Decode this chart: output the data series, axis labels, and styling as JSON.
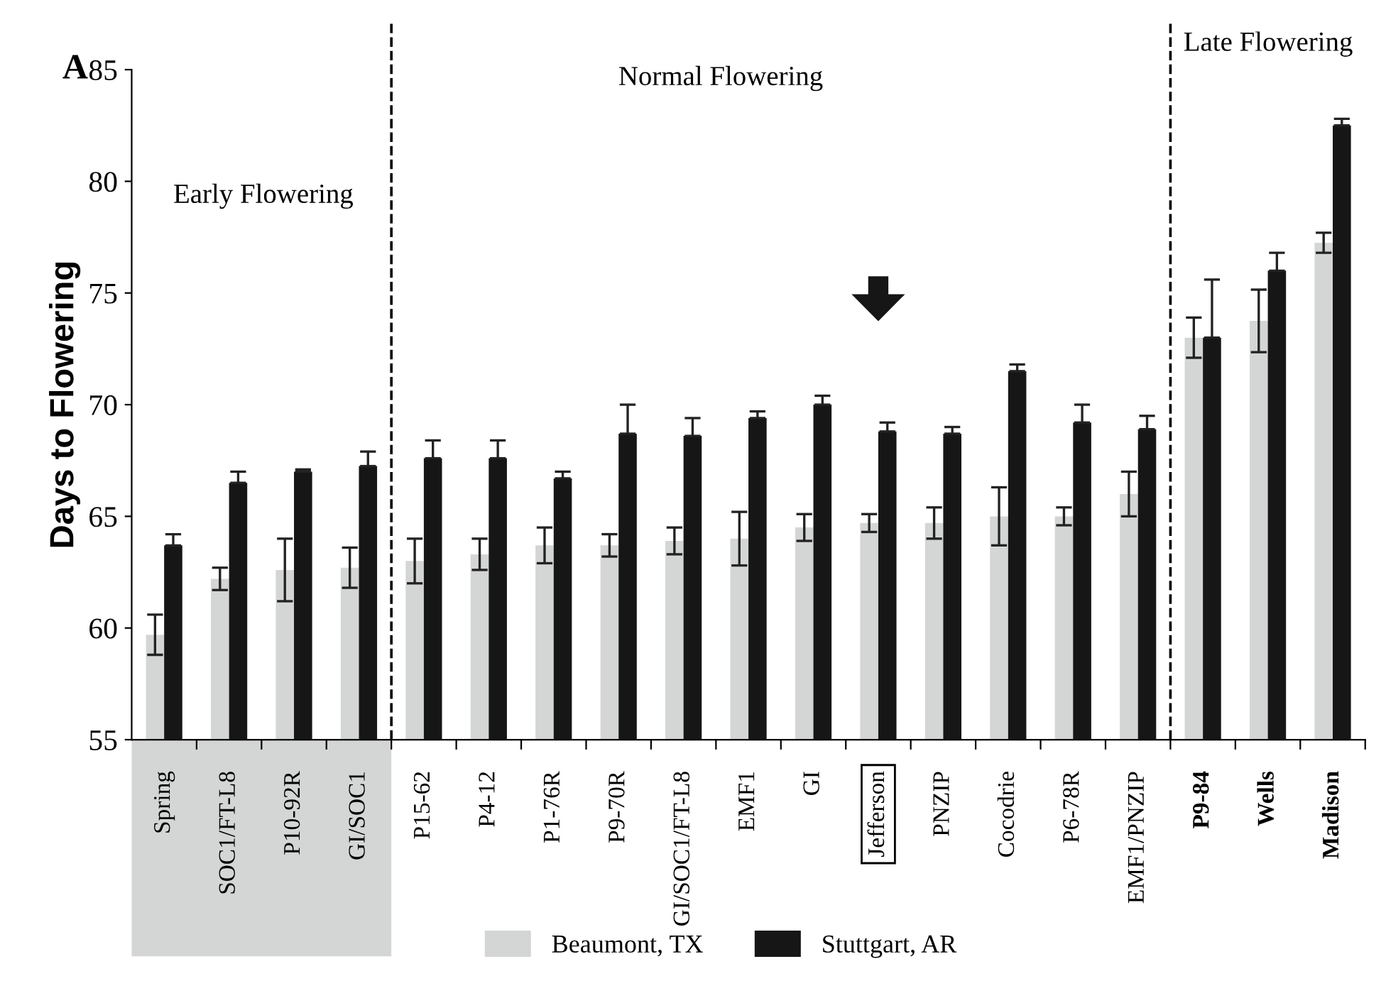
{
  "chart_data": {
    "type": "bar",
    "ylabel": "Days to Flowering",
    "categories": [
      "Spring",
      "SOC1/FT-L8",
      "P10-92R",
      "GI/SOC1",
      "P15-62",
      "P4-12",
      "P1-76R",
      "P9-70R",
      "GI/SOC1/FT-L8",
      "EMF1",
      "GI",
      "Jefferson",
      "PNZIP",
      "Cocodrie",
      "P6-78R",
      "EMF1/PNZIP",
      "P9-84",
      "Wells",
      "Madison"
    ],
    "series": [
      {
        "name": "Beaumont, TX",
        "color": "#d4d6d5",
        "values": [
          59.7,
          62.2,
          62.6,
          62.7,
          63.0,
          63.3,
          63.7,
          63.7,
          63.9,
          64.0,
          64.5,
          64.7,
          64.7,
          65.0,
          65.0,
          66.0,
          73.0,
          73.75,
          77.25
        ],
        "errors": [
          0.9,
          0.5,
          1.4,
          0.9,
          1.0,
          0.7,
          0.8,
          0.5,
          0.6,
          1.2,
          0.6,
          0.4,
          0.7,
          1.3,
          0.4,
          1.0,
          0.9,
          1.4,
          0.45
        ]
      },
      {
        "name": "Stuttgart, AR",
        "color": "#161616",
        "values": [
          63.7,
          66.5,
          67.0,
          67.25,
          67.6,
          67.6,
          66.7,
          68.7,
          68.6,
          69.4,
          70.0,
          68.8,
          68.7,
          71.5,
          69.2,
          68.9,
          73.0,
          76.0,
          82.5
        ],
        "errors": [
          [
            63.7,
            64.2
          ],
          [
            66.5,
            67.0
          ],
          [
            67.0,
            67.1
          ],
          [
            67.25,
            67.9
          ],
          [
            67.6,
            68.4
          ],
          [
            67.6,
            68.4
          ],
          [
            66.7,
            67.0
          ],
          [
            68.7,
            70.0
          ],
          [
            68.6,
            69.4
          ],
          [
            69.4,
            69.7
          ],
          [
            70.0,
            70.4
          ],
          [
            68.8,
            69.2
          ],
          [
            68.7,
            69.0
          ],
          [
            71.5,
            71.8
          ],
          [
            69.2,
            70.0
          ],
          [
            68.9,
            69.5
          ],
          [
            73.0,
            75.6
          ],
          [
            76.0,
            76.8
          ],
          [
            82.5,
            82.8
          ]
        ]
      }
    ],
    "ylim": [
      55,
      85
    ],
    "yticks": [
      55,
      60,
      65,
      70,
      75,
      80,
      85
    ],
    "grid": false,
    "legend": "bottom",
    "annotations": [
      "A",
      "Early Flowering",
      "Normal Flowering",
      "Late Flowering"
    ]
  }
}
